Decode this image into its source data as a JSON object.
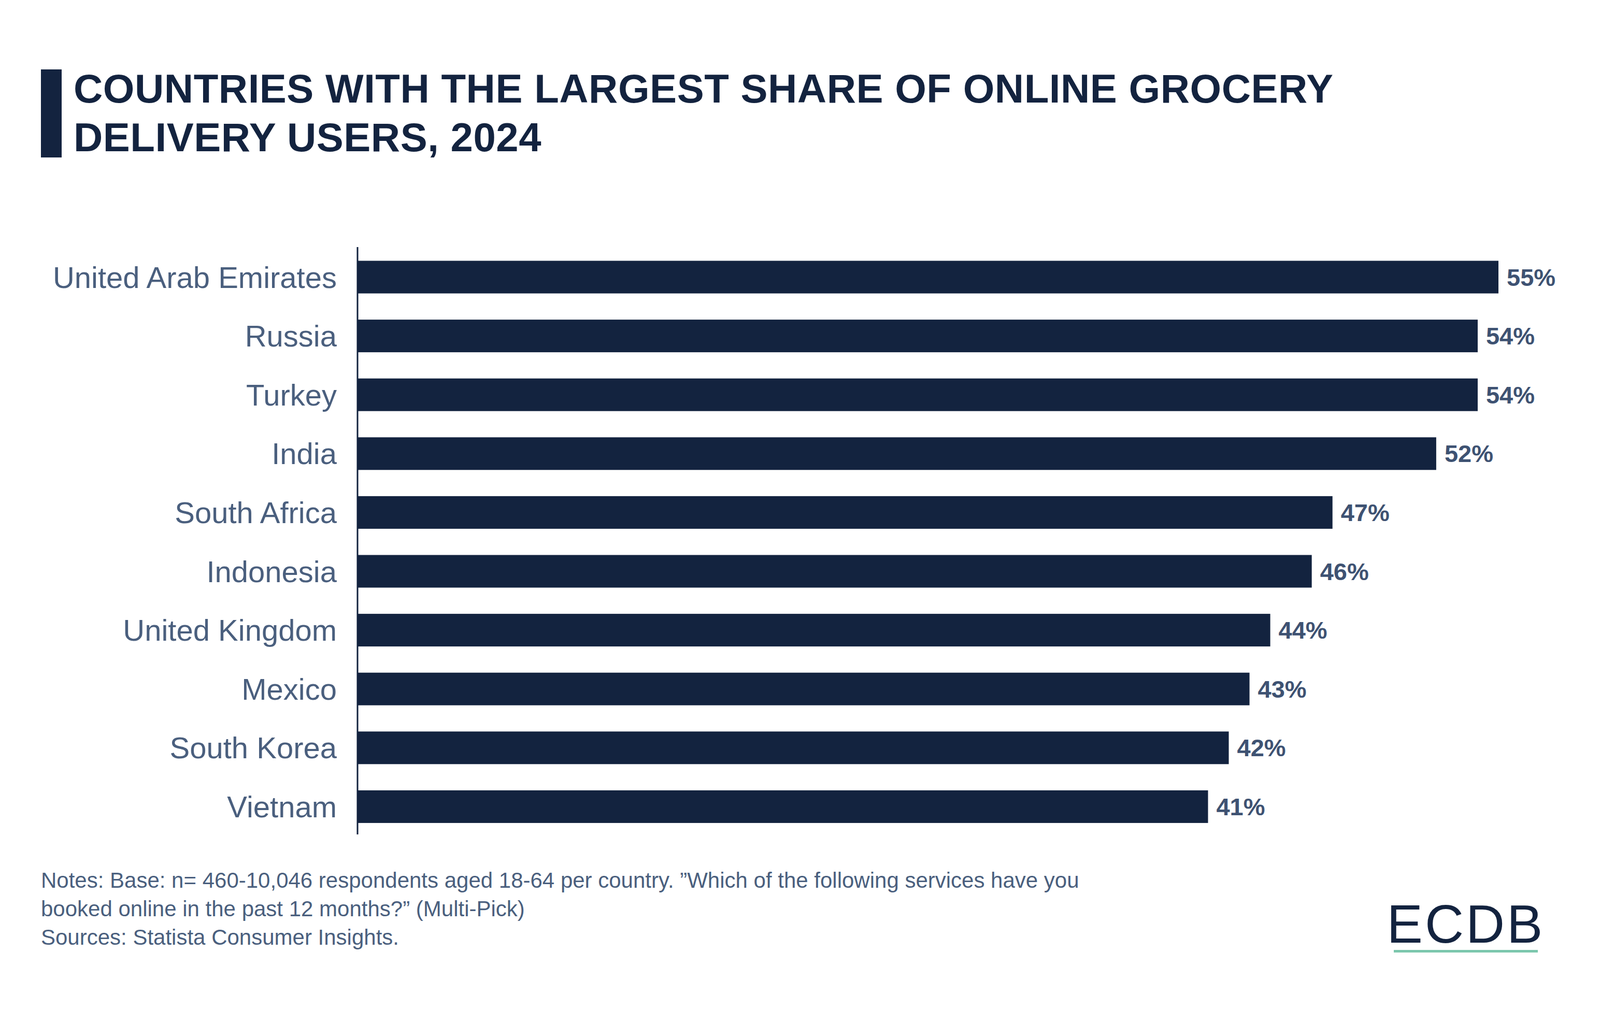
{
  "chart_data": {
    "type": "bar",
    "title": "COUNTRIES WITH THE LARGEST SHARE OF ONLINE GROCERY DELIVERY USERS, 2024",
    "orientation": "horizontal",
    "categories": [
      "United Arab Emirates",
      "Russia",
      "Turkey",
      "India",
      "South Africa",
      "Indonesia",
      "United Kingdom",
      "Mexico",
      "South Korea",
      "Vietnam"
    ],
    "values": [
      55,
      54,
      54,
      52,
      47,
      46,
      44,
      43,
      42,
      41
    ],
    "value_labels": [
      "55%",
      "54%",
      "54%",
      "52%",
      "47%",
      "46%",
      "44%",
      "43%",
      "42%",
      "41%"
    ],
    "color": "#13233f",
    "xlim": [
      0,
      55
    ],
    "data_labels": true,
    "tick_labels": "y",
    "grid": false,
    "notes": [
      "Notes: Base: n= 460-10,046 respondents aged 18-64 per country. ”Which of the following services have you",
      "booked online in the past 12 months?” (Multi-Pick)"
    ],
    "source": "Sources: Statista Consumer Insights.",
    "logo": "ECDB"
  }
}
